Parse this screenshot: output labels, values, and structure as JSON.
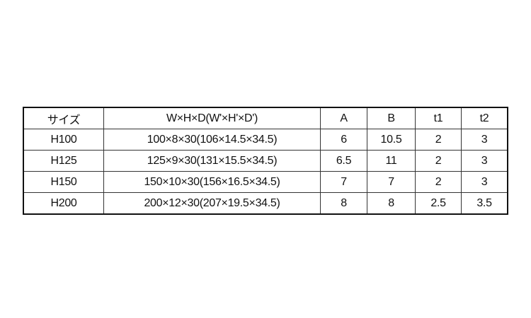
{
  "table": {
    "headers": [
      "サイズ",
      "W×H×D(W'×H'×D')",
      "A",
      "B",
      "t1",
      "t2"
    ],
    "rows": [
      [
        "H100",
        "100×8×30(106×14.5×34.5)",
        "6",
        "10.5",
        "2",
        "3"
      ],
      [
        "H125",
        "125×9×30(131×15.5×34.5)",
        "6.5",
        "11",
        "2",
        "3"
      ],
      [
        "H150",
        "150×10×30(156×16.5×34.5)",
        "7",
        "7",
        "2",
        "3"
      ],
      [
        "H200",
        "200×12×30(207×19.5×34.5)",
        "8",
        "8",
        "2.5",
        "3.5"
      ]
    ]
  }
}
